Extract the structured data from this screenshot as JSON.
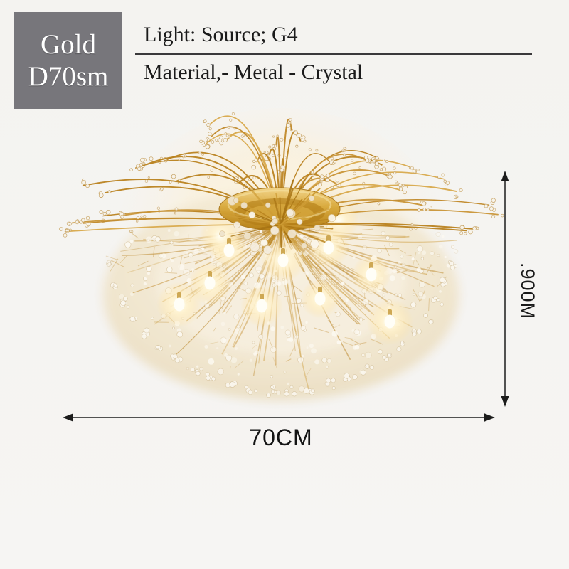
{
  "badge": {
    "line1": "Gold",
    "line2": "D70sm",
    "bg_color": "#77767B",
    "text_color": "#FFFFFF"
  },
  "specs": {
    "light": "Light: Source; G4",
    "material": "Material,- Metal - Crystal"
  },
  "dimensions": {
    "height_label": ".900M",
    "width_label": "70CM"
  },
  "illustration": {
    "name": "gold-crystal-dandelion-ceiling-light",
    "colors": {
      "background": "#F5F4F1",
      "glow": "#FFF4DC",
      "gold_dark": "#B9821F",
      "gold": "#C99537",
      "gold_light": "#D8A94B",
      "crystal": "#F8F4EB",
      "dome": "#F0E5CC",
      "bulb_core": "#FFFEF7",
      "dimension_line": "#1C1C1C"
    }
  }
}
